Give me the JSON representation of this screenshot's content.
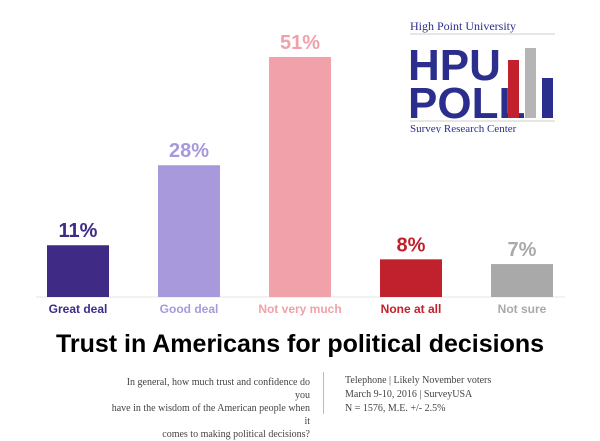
{
  "chart_data": {
    "type": "bar",
    "title": "Trust in Americans for political decisions",
    "categories": [
      "Great deal",
      "Good deal",
      "Not very much",
      "None at all",
      "Not sure"
    ],
    "values": [
      11,
      28,
      51,
      8,
      7
    ],
    "value_labels": [
      "11%",
      "28%",
      "51%",
      "8%",
      "7%"
    ],
    "colors": [
      "#3f2b86",
      "#a899dd",
      "#f0a1a9",
      "#c1202d",
      "#a9a9a9"
    ],
    "ylim": [
      0,
      51
    ],
    "grid": false
  },
  "question": [
    "In general, how much trust and confidence do you",
    "have in the wisdom of the American people when it",
    "comes to making political decisions?"
  ],
  "methodology": [
    "Telephone  |  Likely November voters",
    "March 9-10, 2016  |  SurveyUSA",
    "N = 1576, M.E. +/- 2.5%"
  ],
  "logo": {
    "line1": "High Point University",
    "line2": "HPU",
    "line3": "POLL",
    "line4": "Survey Research Center",
    "color": "#2b2e8c"
  }
}
